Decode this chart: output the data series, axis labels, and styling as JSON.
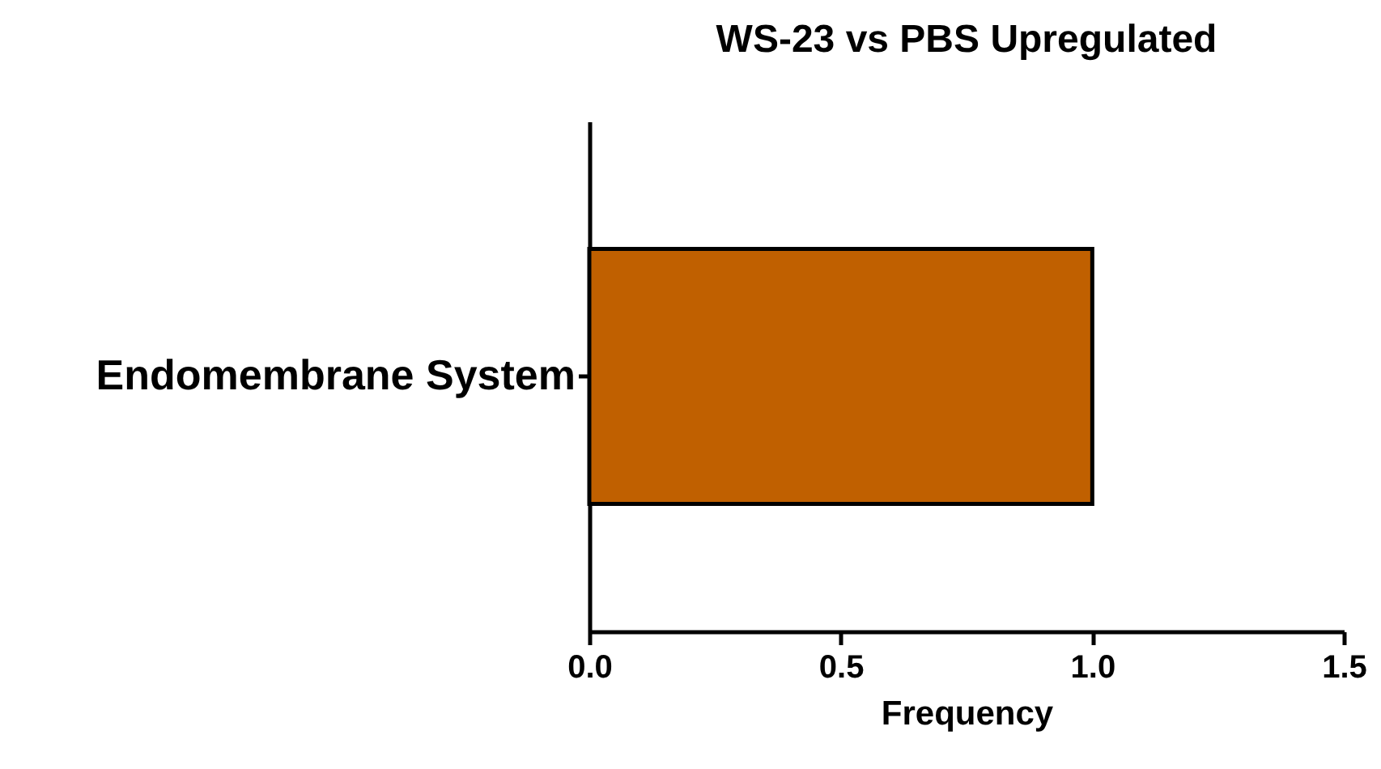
{
  "chart_data": {
    "type": "bar",
    "orientation": "horizontal",
    "title": "WS-23 vs PBS Upregulated",
    "xlabel": "Frequency",
    "categories": [
      "Endomembrane System"
    ],
    "values": [
      1.0
    ],
    "color": "#c06000",
    "xlim": [
      0,
      1.5
    ],
    "xticks": [
      {
        "value": 0,
        "label": "0.0"
      },
      {
        "value": 0.5,
        "label": "0.5"
      },
      {
        "value": 1,
        "label": "1.0"
      },
      {
        "value": 1.5,
        "label": "1.5"
      }
    ],
    "grid": false
  }
}
